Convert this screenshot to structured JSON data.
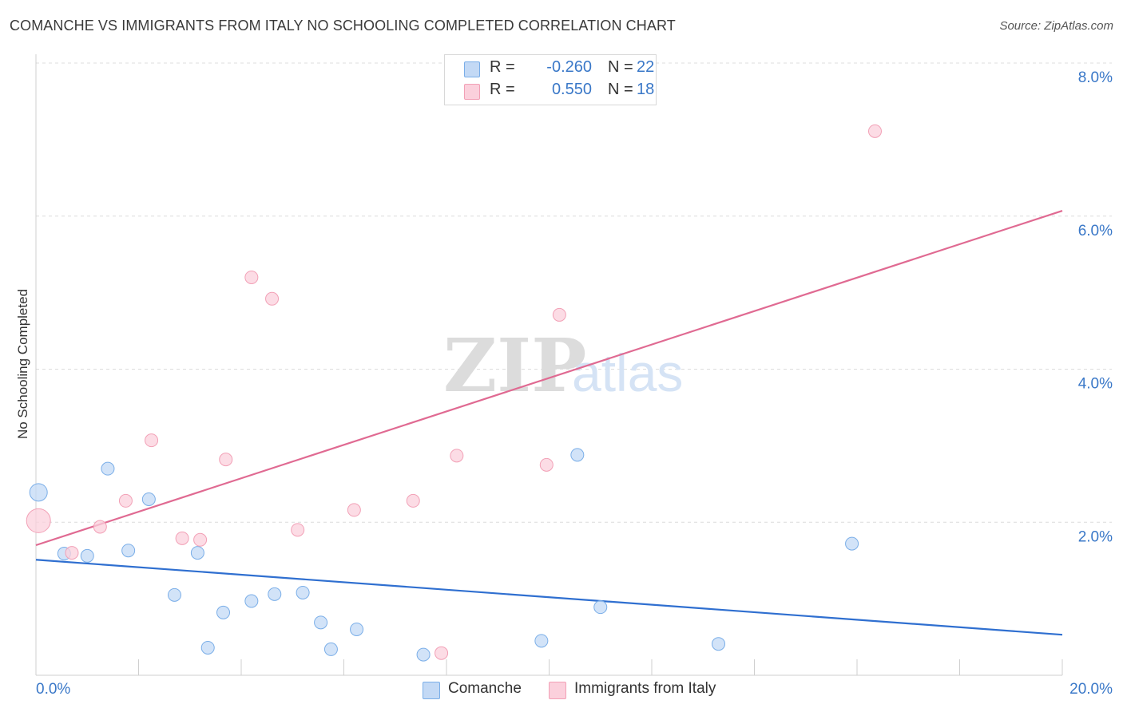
{
  "title": "COMANCHE VS IMMIGRANTS FROM ITALY NO SCHOOLING COMPLETED CORRELATION CHART",
  "source": "Source: ZipAtlas.com",
  "watermark": {
    "zip": "ZIP",
    "atlas": "atlas"
  },
  "legend": {
    "r_label": "R =",
    "n_label": "N =",
    "rows": [
      {
        "r": "-0.260",
        "n": "22"
      },
      {
        "r": "0.550",
        "n": "18"
      }
    ]
  },
  "chart_data": {
    "type": "scatter",
    "ylabel": "No Schooling Completed",
    "xlim": [
      0,
      20
    ],
    "ylim": [
      0,
      8
    ],
    "x_tick_labels": [
      "0.0%",
      "20.0%"
    ],
    "y_ticks": [
      2,
      4,
      6,
      8
    ],
    "y_tick_labels": [
      "2.0%",
      "4.0%",
      "6.0%",
      "8.0%"
    ],
    "grid": true,
    "colors": {
      "comanche": "#7aaee8",
      "italy": "#f2a0b6",
      "comanche_line": "#2f6fd0",
      "italy_line": "#e06a92",
      "axis_text": "#3a78c8"
    },
    "series": [
      {
        "name": "Comanche",
        "points": [
          [
            0.05,
            2.39
          ],
          [
            0.55,
            1.59
          ],
          [
            1.0,
            1.56
          ],
          [
            1.4,
            2.7
          ],
          [
            1.8,
            1.63
          ],
          [
            2.2,
            2.3
          ],
          [
            2.7,
            1.05
          ],
          [
            3.15,
            1.6
          ],
          [
            3.35,
            0.36
          ],
          [
            3.65,
            0.82
          ],
          [
            4.2,
            0.97
          ],
          [
            4.65,
            1.06
          ],
          [
            5.2,
            1.08
          ],
          [
            5.55,
            0.69
          ],
          [
            5.75,
            0.34
          ],
          [
            6.25,
            0.6
          ],
          [
            7.55,
            0.27
          ],
          [
            9.85,
            0.45
          ],
          [
            10.55,
            2.88
          ],
          [
            11.0,
            0.89
          ],
          [
            13.3,
            0.41
          ],
          [
            15.9,
            1.72
          ]
        ],
        "trend": [
          [
            0,
            1.51
          ],
          [
            20,
            0.53
          ]
        ]
      },
      {
        "name": "Immigrants from Italy",
        "points": [
          [
            0.05,
            2.02
          ],
          [
            0.7,
            1.6
          ],
          [
            1.25,
            1.94
          ],
          [
            1.75,
            2.28
          ],
          [
            2.25,
            3.07
          ],
          [
            2.85,
            1.79
          ],
          [
            3.2,
            1.77
          ],
          [
            3.7,
            2.82
          ],
          [
            4.2,
            5.2
          ],
          [
            4.6,
            4.92
          ],
          [
            5.1,
            1.9
          ],
          [
            6.2,
            2.16
          ],
          [
            7.35,
            2.28
          ],
          [
            7.9,
            0.29
          ],
          [
            8.2,
            2.87
          ],
          [
            9.95,
            2.75
          ],
          [
            10.2,
            4.71
          ],
          [
            16.35,
            7.11
          ]
        ],
        "trend": [
          [
            0,
            1.7
          ],
          [
            20,
            6.07
          ]
        ]
      }
    ]
  }
}
